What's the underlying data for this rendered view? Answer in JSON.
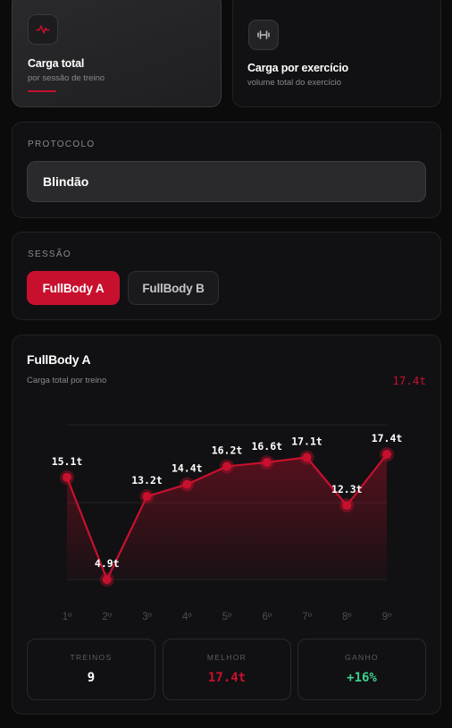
{
  "modes": [
    {
      "title": "Carga total",
      "subtitle": "por sessão de treino",
      "icon": "activity-icon",
      "active": true
    },
    {
      "title": "Carga por exercício",
      "subtitle": "volume total do exercício",
      "icon": "dumbbell-icon",
      "active": false
    }
  ],
  "protocol": {
    "label": "PROTOCOLO",
    "value": "Blindão"
  },
  "session": {
    "label": "SESSÃO",
    "options": [
      "FullBody A",
      "FullBody B"
    ],
    "selected": "FullBody A"
  },
  "chart": {
    "title": "FullBody A",
    "subtitle": "Carga total por treino",
    "latest": "17.4t",
    "accent": "#c8102e"
  },
  "chart_data": {
    "type": "line",
    "categories": [
      "1º",
      "2º",
      "3º",
      "4º",
      "5º",
      "6º",
      "7º",
      "8º",
      "9º"
    ],
    "values": [
      15.1,
      4.9,
      13.2,
      14.4,
      16.2,
      16.6,
      17.1,
      12.3,
      17.4
    ],
    "value_labels": [
      "15.1t",
      "4.9t",
      "13.2t",
      "14.4t",
      "16.2t",
      "16.6t",
      "17.1t",
      "12.3t",
      "17.4t"
    ],
    "ylim": [
      4.9,
      17.4
    ],
    "grid": true,
    "legend": "none"
  },
  "stats": [
    {
      "label": "TREINOS",
      "value": "9",
      "color": "#ffffff"
    },
    {
      "label": "MELHOR",
      "value": "17.4t",
      "color": "#c8102e"
    },
    {
      "label": "GANHO",
      "value": "+16%",
      "color": "#3ecf8e"
    }
  ]
}
